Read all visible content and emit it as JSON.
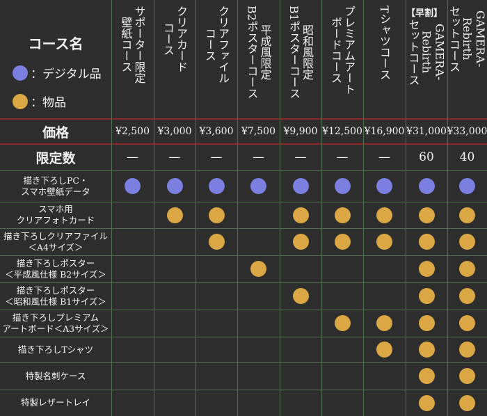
{
  "header": {
    "course_label": "コース名",
    "legend_digital": "：デジタル品",
    "legend_physical": "：物品"
  },
  "colors": {
    "digital": "#7b7fe0",
    "physical": "#daa744"
  },
  "courses": [
    {
      "name": "サポーター限定\n壁紙コース",
      "price": "¥2,500",
      "limit": "—"
    },
    {
      "name": "クリアカード\nコース",
      "price": "¥3,000",
      "limit": "—"
    },
    {
      "name": "クリアファイル\nコース",
      "price": "¥3,600",
      "limit": "—"
    },
    {
      "name": "平成風限定\nB2ポスターコース",
      "price": "¥7,500",
      "limit": "—"
    },
    {
      "name": "昭和風限定\nB1ポスターコース",
      "price": "¥9,900",
      "limit": "—"
    },
    {
      "name": "プレミアムアート\nボードコース",
      "price": "¥12,500",
      "limit": "—"
    },
    {
      "name": "Tシャツコース",
      "price": "¥16,900",
      "limit": "—"
    },
    {
      "name": "GAMERA-\nRebirth\nセットコース",
      "prefix": "【早割】",
      "price": "¥31,000",
      "limit": "60"
    },
    {
      "name": "GAMERA-\nRebirth\nセットコース",
      "price": "¥33,000",
      "limit": "40"
    }
  ],
  "labels": {
    "price_row": "価格",
    "limit_row": "限定数"
  },
  "items": [
    {
      "label": "描き下ろしPC・\nスマホ壁紙データ",
      "cells": [
        "d",
        "d",
        "d",
        "d",
        "d",
        "d",
        "d",
        "d",
        "d"
      ]
    },
    {
      "label": "スマホ用\nクリアフォトカード",
      "cells": [
        "",
        "p",
        "p",
        "",
        "p",
        "p",
        "p",
        "p",
        "p"
      ]
    },
    {
      "label": "描き下ろしクリアファイル\n＜A4サイズ＞",
      "cells": [
        "",
        "",
        "p",
        "",
        "p",
        "p",
        "p",
        "p",
        "p"
      ]
    },
    {
      "label": "描き下ろしポスター\n＜平成風仕様 B2サイズ＞",
      "cells": [
        "",
        "",
        "",
        "p",
        "",
        "",
        "",
        "p",
        "p"
      ]
    },
    {
      "label": "描き下ろしポスター\n＜昭和風仕様 B1サイズ＞",
      "cells": [
        "",
        "",
        "",
        "",
        "p",
        "",
        "",
        "p",
        "p"
      ]
    },
    {
      "label": "描き下ろしプレミアム\nアートボード＜A3サイズ＞",
      "cells": [
        "",
        "",
        "",
        "",
        "",
        "p",
        "p",
        "p",
        "p"
      ]
    },
    {
      "label": "描き下ろしTシャツ",
      "cells": [
        "",
        "",
        "",
        "",
        "",
        "",
        "p",
        "p",
        "p"
      ]
    },
    {
      "label": "特製名刺ケース",
      "cells": [
        "",
        "",
        "",
        "",
        "",
        "",
        "",
        "p",
        "p"
      ]
    },
    {
      "label": "特製レザートレイ",
      "cells": [
        "",
        "",
        "",
        "",
        "",
        "",
        "",
        "p",
        "p"
      ]
    }
  ]
}
